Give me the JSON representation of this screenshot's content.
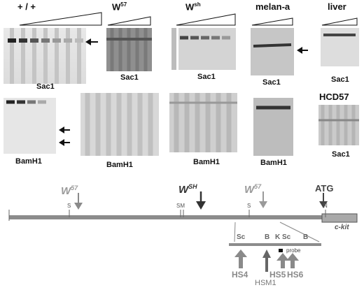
{
  "panels": {
    "wt": {
      "title": "+ / +",
      "sac": "Sac1",
      "bam": "BamH1"
    },
    "w57": {
      "title_base": "W",
      "title_sup": "57",
      "sac": "Sac1",
      "bam": "BamH1"
    },
    "wsh": {
      "title_base": "W",
      "title_sup": "sh",
      "sac": "Sac1",
      "bam": "BamH1"
    },
    "melan": {
      "title": "melan-a",
      "sac": "Sac1",
      "bam": "BamH1"
    },
    "liver": {
      "title": "liver",
      "sac": "Sac1",
      "hcd": "HCD57",
      "hcd_sac": "Sac1"
    }
  },
  "map": {
    "w57_left": {
      "base": "W",
      "sup": "57"
    },
    "wsh": {
      "base": "W",
      "sup": "SH"
    },
    "w57_right": {
      "base": "W",
      "sup": "57"
    },
    "atg": "ATG",
    "site_s1": "S",
    "site_sm": "SM",
    "site_s2": "S",
    "site_n": "N",
    "ckit": "c-kit",
    "zoom": {
      "sc1": "Sc",
      "b1": "B",
      "k": "K",
      "sc2": "Sc",
      "b2": "B",
      "probe": "probe"
    },
    "hs": {
      "hs4": "HS4",
      "hsm1": "HSM1",
      "hs5": "HS5",
      "hs6": "HS6"
    }
  },
  "colors": {
    "arrow_gray": "#8a8a8a",
    "arrow_dark": "#333333",
    "line": "#8c8c8c",
    "ckit_box": "#a9a9a9"
  }
}
